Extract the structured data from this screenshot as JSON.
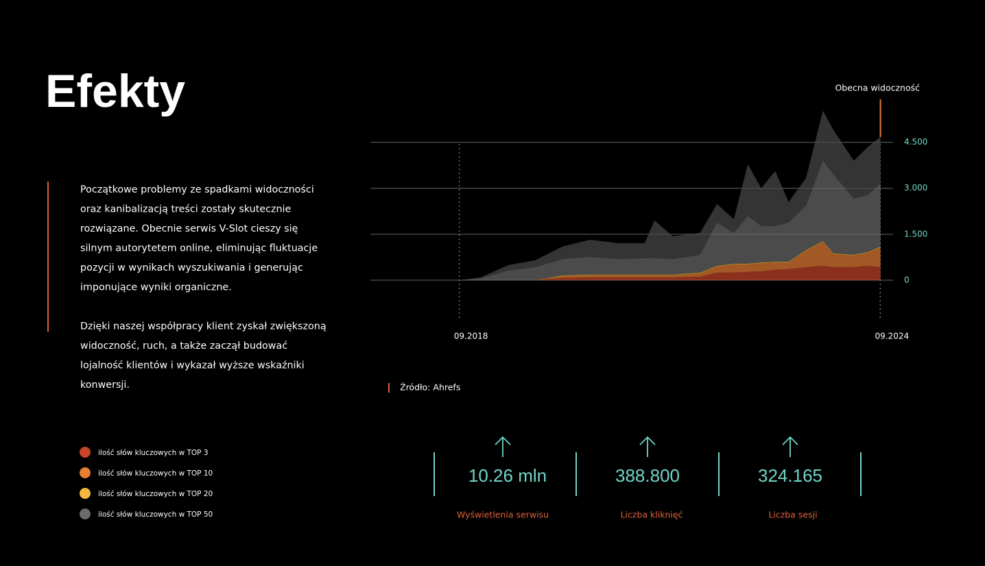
{
  "header": {
    "title": "Efekty"
  },
  "body": {
    "paragraphs": [
      [
        "Początkowe problemy ze spadkami widoczności",
        "oraz kanibalizacją treści zostały skutecznie",
        "rozwiązane. Obecnie serwis V-Slot cieszy się",
        "silnym autorytetem online, eliminując fluktuacje",
        "pozycji w wynikach wyszukiwania i generując",
        "imponujące wyniki organiczne."
      ],
      [
        "Dzięki naszej współpracy klient zyskał zwiększoną",
        "widoczność, ruch, a także zaczął budować",
        "lojalność klientów i wykazał wyższe wskaźniki",
        "konwersji."
      ]
    ]
  },
  "source": "Źródło: Ahrefs",
  "stats": [
    {
      "value": "10.26 mln",
      "label": "Wyświetlenia serwisu"
    },
    {
      "value": "388.800",
      "label": "Liczba kliknięć"
    },
    {
      "value": "324.165",
      "label": "Liczba sesji"
    }
  ],
  "chart_data": {
    "type": "area",
    "annotation": "Obecna widoczność",
    "x": [
      2018.67,
      2018.97,
      2019.36,
      2019.75,
      2020.14,
      2020.53,
      2020.92,
      2021.31,
      2021.45,
      2021.71,
      2022.1,
      2022.34,
      2022.58,
      2022.78,
      2022.97,
      2023.17,
      2023.36,
      2023.61,
      2023.85,
      2024.0,
      2024.29,
      2024.49,
      2024.67
    ],
    "series": [
      {
        "name": "ilość słów kluczowych w TOP 3",
        "color": "#c8452a",
        "values": [
          0,
          0,
          0,
          0,
          70,
          90,
          90,
          90,
          90,
          90,
          110,
          245,
          245,
          270,
          290,
          335,
          360,
          425,
          470,
          425,
          425,
          470,
          425
        ]
      },
      {
        "name": "ilość słów kluczowych w TOP 10",
        "color": "#e87f35",
        "values": [
          0,
          0,
          0,
          0,
          55,
          60,
          60,
          60,
          60,
          60,
          105,
          195,
          265,
          240,
          260,
          235,
          210,
          530,
          775,
          420,
          375,
          420,
          640
        ]
      },
      {
        "name": "ilość słów kluczowych w TOP 20",
        "color": "#f4b73f",
        "values": [
          0,
          0,
          0,
          0,
          30,
          30,
          30,
          30,
          30,
          30,
          30,
          30,
          30,
          30,
          30,
          30,
          30,
          30,
          30,
          30,
          30,
          30,
          30
        ]
      },
      {
        "name": "ilość słów kluczowych w TOP 50",
        "color": "#6b6b6b",
        "values": [
          0,
          60,
          310,
          425,
          535,
          580,
          510,
          535,
          540,
          510,
          585,
          1410,
          1005,
          1560,
          1190,
          1170,
          1280,
          1455,
          2620,
          2575,
          1835,
          1855,
          2060
        ]
      },
      {
        "color": "#4a4a4a",
        "values": [
          0,
          30,
          180,
          225,
          410,
          560,
          520,
          495,
          1230,
          740,
          715,
          605,
          445,
          1680,
          1230,
          1790,
          670,
          895,
          1635,
          1450,
          1230,
          1570,
          1525
        ]
      }
    ],
    "xlim": [
      2017.4,
      2024.85
    ],
    "xticks": [
      {
        "value": 2018.667,
        "label": "09.2018"
      },
      {
        "value": 2024.667,
        "label": "09.2024"
      }
    ],
    "ylim": [
      -1300,
      5900
    ],
    "yticks": [
      {
        "value": 0,
        "label": "0"
      },
      {
        "value": 1500,
        "label": "1.500"
      },
      {
        "value": 3000,
        "label": "3.000"
      },
      {
        "value": 4500,
        "label": "4.500"
      }
    ],
    "grid": true
  }
}
